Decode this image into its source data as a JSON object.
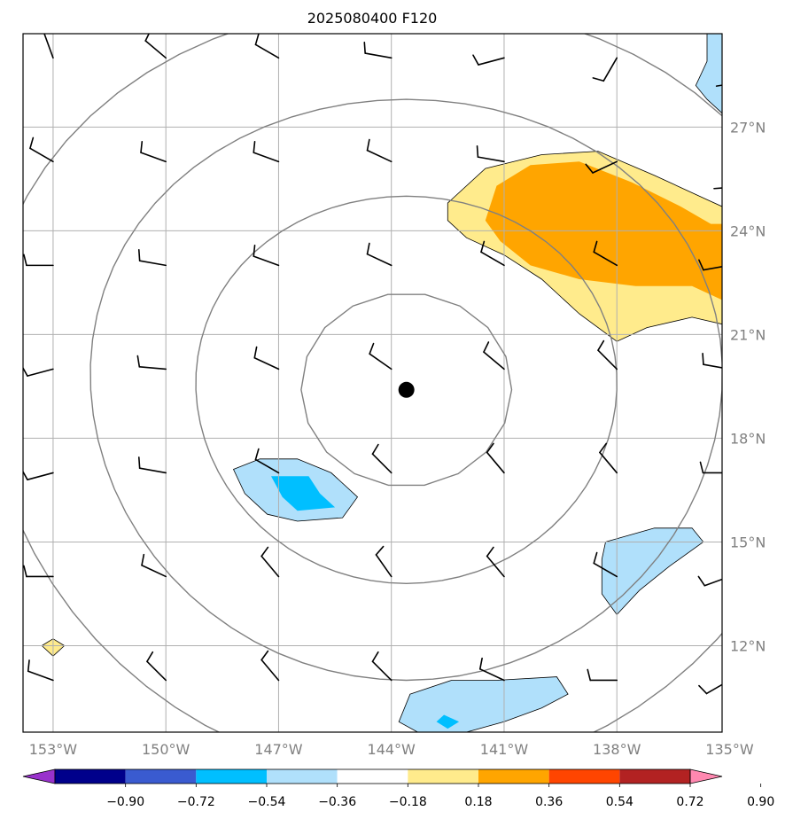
{
  "title": "2025080400 F120",
  "map": {
    "projection": "lat-lon",
    "extent": {
      "lon": [
        -153.8,
        -135.2
      ],
      "lat": [
        9.5,
        29.7
      ]
    },
    "longitude_ticks": [
      {
        "lon": -153,
        "label": "153°W"
      },
      {
        "lon": -150,
        "label": "150°W"
      },
      {
        "lon": -147,
        "label": "147°W"
      },
      {
        "lon": -144,
        "label": "144°W"
      },
      {
        "lon": -141,
        "label": "141°W"
      },
      {
        "lon": -138,
        "label": "138°W"
      },
      {
        "lon": -135,
        "label": "135°W"
      }
    ],
    "latitude_ticks": [
      {
        "lat": 27,
        "label": "27°N"
      },
      {
        "lat": 24,
        "label": "24°N"
      },
      {
        "lat": 21,
        "label": "21°N"
      },
      {
        "lat": 18,
        "label": "18°N"
      },
      {
        "lat": 15,
        "label": "15°N"
      },
      {
        "lat": 12,
        "label": "12°N"
      }
    ],
    "gridlines": true,
    "center_marker": {
      "lon": -143.6,
      "lat": 19.4
    },
    "range_rings_deg": [
      2.8,
      5.6,
      8.4,
      11.2
    ]
  },
  "colorbar": {
    "levels": [
      "−0.90",
      "−0.72",
      "−0.54",
      "−0.36",
      "−0.18",
      "0.18",
      "0.36",
      "0.54",
      "0.72",
      "0.90"
    ],
    "colors": [
      "#9932cc",
      "#00008b",
      "#3a5bd0",
      "#00bfff",
      "#b0e0fb",
      "#ffffff",
      "#ffeb8c",
      "#ffa500",
      "#ff4500",
      "#b22222",
      "#ff88b0"
    ],
    "extend": "both"
  },
  "chart_data": {
    "type": "heatmap",
    "variable_note": "shaded anomaly field with wind barbs",
    "shaded_regions": [
      {
        "level": "0.18–0.36",
        "color": "#ffeb8c",
        "polygon": [
          [
            -142.5,
            24.8
          ],
          [
            -141.5,
            25.8
          ],
          [
            -140.0,
            26.2
          ],
          [
            -138.5,
            26.3
          ],
          [
            -137.0,
            25.6
          ],
          [
            -135.6,
            24.9
          ],
          [
            -135.2,
            24.7
          ],
          [
            -135.2,
            21.3
          ],
          [
            -136.0,
            21.5
          ],
          [
            -137.2,
            21.2
          ],
          [
            -138.0,
            20.8
          ],
          [
            -139.0,
            21.6
          ],
          [
            -140.0,
            22.6
          ],
          [
            -141.0,
            23.3
          ],
          [
            -142.0,
            23.8
          ],
          [
            -142.5,
            24.3
          ]
        ]
      },
      {
        "level": "0.36–0.54",
        "color": "#ffa500",
        "polygon": [
          [
            -141.5,
            24.3
          ],
          [
            -141.2,
            25.3
          ],
          [
            -140.3,
            25.9
          ],
          [
            -139.0,
            26.0
          ],
          [
            -137.6,
            25.4
          ],
          [
            -136.3,
            24.7
          ],
          [
            -135.5,
            24.2
          ],
          [
            -135.2,
            24.2
          ],
          [
            -135.2,
            22.0
          ],
          [
            -136.0,
            22.4
          ],
          [
            -137.5,
            22.4
          ],
          [
            -139.0,
            22.6
          ],
          [
            -140.3,
            23.0
          ],
          [
            -141.1,
            23.7
          ]
        ]
      },
      {
        "level": "-0.36–-0.18",
        "color": "#b0e0fb",
        "polygon": [
          [
            -148.2,
            17.1
          ],
          [
            -147.5,
            17.4
          ],
          [
            -146.5,
            17.4
          ],
          [
            -145.6,
            17.0
          ],
          [
            -144.9,
            16.3
          ],
          [
            -145.3,
            15.7
          ],
          [
            -146.5,
            15.6
          ],
          [
            -147.3,
            15.8
          ],
          [
            -147.9,
            16.4
          ]
        ]
      },
      {
        "level": "-0.54–-0.36",
        "color": "#00bfff",
        "polygon": [
          [
            -147.2,
            16.9
          ],
          [
            -146.2,
            16.9
          ],
          [
            -145.9,
            16.4
          ],
          [
            -145.5,
            16.0
          ],
          [
            -146.5,
            15.9
          ],
          [
            -146.9,
            16.3
          ]
        ]
      },
      {
        "level": "-0.36–-0.18",
        "color": "#b0e0fb",
        "polygon": [
          [
            -138.3,
            15.0
          ],
          [
            -137.0,
            15.4
          ],
          [
            -136.0,
            15.4
          ],
          [
            -135.7,
            15.0
          ],
          [
            -136.6,
            14.3
          ],
          [
            -137.4,
            13.6
          ],
          [
            -138.0,
            12.9
          ],
          [
            -138.4,
            13.5
          ],
          [
            -138.4,
            14.5
          ]
        ]
      },
      {
        "level": "-0.36–-0.18",
        "color": "#b0e0fb",
        "polygon": [
          [
            -143.5,
            10.6
          ],
          [
            -142.4,
            11.0
          ],
          [
            -141.2,
            11.0
          ],
          [
            -139.6,
            11.1
          ],
          [
            -139.3,
            10.6
          ],
          [
            -140.0,
            10.2
          ],
          [
            -141.0,
            9.8
          ],
          [
            -142.0,
            9.5
          ],
          [
            -143.3,
            9.5
          ],
          [
            -143.8,
            9.8
          ]
        ]
      },
      {
        "level": "-0.54–-0.36",
        "color": "#00bfff",
        "polygon": [
          [
            -142.6,
            10.0
          ],
          [
            -142.2,
            9.8
          ],
          [
            -142.5,
            9.6
          ],
          [
            -142.8,
            9.8
          ]
        ]
      },
      {
        "level": "-0.36–-0.18",
        "color": "#b0e0fb",
        "polygon": [
          [
            -135.6,
            29.7
          ],
          [
            -135.2,
            29.7
          ],
          [
            -135.2,
            27.4
          ],
          [
            -135.6,
            27.8
          ],
          [
            -135.9,
            28.2
          ],
          [
            -135.6,
            28.9
          ]
        ]
      },
      {
        "level": "0.18–0.36",
        "color": "#ffeb8c",
        "polygon": [
          [
            -153.0,
            12.2
          ],
          [
            -152.7,
            12.0
          ],
          [
            -153.0,
            11.7
          ],
          [
            -153.3,
            12.0
          ]
        ]
      }
    ],
    "wind_barbs": [
      {
        "lon": -153,
        "lat": 29,
        "dir": 340,
        "speed": 10
      },
      {
        "lon": -150,
        "lat": 29,
        "dir": 310,
        "speed": 10
      },
      {
        "lon": -147,
        "lat": 29,
        "dir": 300,
        "speed": 10
      },
      {
        "lon": -144,
        "lat": 29,
        "dir": 280,
        "speed": 10
      },
      {
        "lon": -141,
        "lat": 29,
        "dir": 255,
        "speed": 10
      },
      {
        "lon": -138,
        "lat": 29,
        "dir": 210,
        "speed": 10
      },
      {
        "lon": -135,
        "lat": 29,
        "dir": 185,
        "speed": 10
      },
      {
        "lon": -153,
        "lat": 26,
        "dir": 300,
        "speed": 10
      },
      {
        "lon": -150,
        "lat": 26,
        "dir": 290,
        "speed": 10
      },
      {
        "lon": -147,
        "lat": 26,
        "dir": 290,
        "speed": 10
      },
      {
        "lon": -144,
        "lat": 26,
        "dir": 295,
        "speed": 10
      },
      {
        "lon": -141,
        "lat": 26,
        "dir": 280,
        "speed": 10
      },
      {
        "lon": -138,
        "lat": 26,
        "dir": 245,
        "speed": 10
      },
      {
        "lon": -135,
        "lat": 26,
        "dir": 190,
        "speed": 10
      },
      {
        "lon": -153,
        "lat": 23,
        "dir": 270,
        "speed": 10
      },
      {
        "lon": -150,
        "lat": 23,
        "dir": 280,
        "speed": 10
      },
      {
        "lon": -147,
        "lat": 23,
        "dir": 290,
        "speed": 10
      },
      {
        "lon": -144,
        "lat": 23,
        "dir": 295,
        "speed": 10
      },
      {
        "lon": -141,
        "lat": 23,
        "dir": 300,
        "speed": 10
      },
      {
        "lon": -138,
        "lat": 23,
        "dir": 300,
        "speed": 10
      },
      {
        "lon": -135,
        "lat": 23,
        "dir": 260,
        "speed": 10
      },
      {
        "lon": -153,
        "lat": 20,
        "dir": 255,
        "speed": 10
      },
      {
        "lon": -150,
        "lat": 20,
        "dir": 275,
        "speed": 10
      },
      {
        "lon": -147,
        "lat": 20,
        "dir": 295,
        "speed": 10
      },
      {
        "lon": -144,
        "lat": 20,
        "dir": 305,
        "speed": 10
      },
      {
        "lon": -141,
        "lat": 20,
        "dir": 310,
        "speed": 10
      },
      {
        "lon": -138,
        "lat": 20,
        "dir": 315,
        "speed": 10
      },
      {
        "lon": -135,
        "lat": 20,
        "dir": 280,
        "speed": 10
      },
      {
        "lon": -153,
        "lat": 17,
        "dir": 255,
        "speed": 10
      },
      {
        "lon": -150,
        "lat": 17,
        "dir": 280,
        "speed": 10
      },
      {
        "lon": -147,
        "lat": 17,
        "dir": 300,
        "speed": 10
      },
      {
        "lon": -144,
        "lat": 17,
        "dir": 315,
        "speed": 10
      },
      {
        "lon": -141,
        "lat": 17,
        "dir": 320,
        "speed": 10
      },
      {
        "lon": -138,
        "lat": 17,
        "dir": 320,
        "speed": 10
      },
      {
        "lon": -135,
        "lat": 17,
        "dir": 270,
        "speed": 10
      },
      {
        "lon": -153,
        "lat": 14,
        "dir": 270,
        "speed": 10
      },
      {
        "lon": -150,
        "lat": 14,
        "dir": 295,
        "speed": 10
      },
      {
        "lon": -147,
        "lat": 14,
        "dir": 320,
        "speed": 10
      },
      {
        "lon": -144,
        "lat": 14,
        "dir": 325,
        "speed": 10
      },
      {
        "lon": -141,
        "lat": 14,
        "dir": 320,
        "speed": 10
      },
      {
        "lon": -138,
        "lat": 14,
        "dir": 300,
        "speed": 10
      },
      {
        "lon": -135,
        "lat": 14,
        "dir": 250,
        "speed": 10
      },
      {
        "lon": -153,
        "lat": 11,
        "dir": 290,
        "speed": 10
      },
      {
        "lon": -150,
        "lat": 11,
        "dir": 315,
        "speed": 10
      },
      {
        "lon": -147,
        "lat": 11,
        "dir": 320,
        "speed": 10
      },
      {
        "lon": -144,
        "lat": 11,
        "dir": 315,
        "speed": 10
      },
      {
        "lon": -141,
        "lat": 11,
        "dir": 295,
        "speed": 10
      },
      {
        "lon": -138,
        "lat": 11,
        "dir": 270,
        "speed": 10
      },
      {
        "lon": -135,
        "lat": 11,
        "dir": 240,
        "speed": 10
      }
    ]
  }
}
